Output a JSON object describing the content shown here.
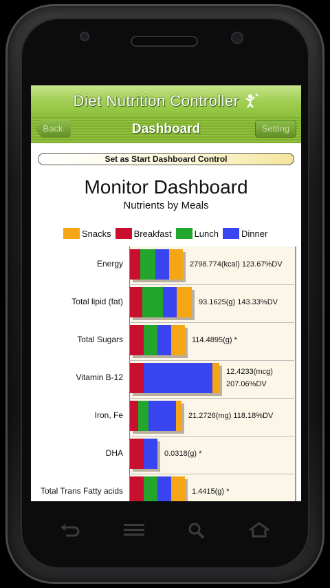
{
  "app": {
    "title": "Diet Nutrition Controller",
    "nav_title": "Dashboard",
    "back_label": "Back",
    "setting_label": "Setting",
    "start_button_label": "Set as Start Dashboard Control"
  },
  "dashboard": {
    "title": "Monitor Dashboard",
    "subtitle": "Nutrients by Meals"
  },
  "chart_data": {
    "type": "bar",
    "orientation": "horizontal",
    "stacked": true,
    "legend": [
      "Snacks",
      "Breakfast",
      "Lunch",
      "Dinner"
    ],
    "legend_position": "top",
    "colors": {
      "Snacks": "#f5a614",
      "Breakfast": "#c8102e",
      "Lunch": "#22a62b",
      "Dinner": "#3845f0"
    },
    "categories": [
      "Energy",
      "Total lipid (fat)",
      "Total Sugars",
      "Vitamin B-12",
      "Iron, Fe",
      "DHA",
      "Total Trans Fatty acids"
    ],
    "series": [
      {
        "name": "Breakfast",
        "values": [
          15,
          18,
          20,
          20,
          12,
          20,
          20
        ]
      },
      {
        "name": "Lunch",
        "values": [
          22,
          30,
          20,
          0,
          15,
          0,
          20
        ]
      },
      {
        "name": "Dinner",
        "values": [
          20,
          20,
          20,
          100,
          40,
          20,
          20
        ]
      },
      {
        "name": "Snacks",
        "values": [
          20,
          22,
          20,
          10,
          8,
          0,
          20
        ]
      }
    ],
    "value_labels": [
      [
        "2798.774(kcal) 123.67%DV"
      ],
      [
        "93.1625(g) 143.33%DV"
      ],
      [
        "114.4895(g) *"
      ],
      [
        "12.4233(mcg)",
        "207.06%DV"
      ],
      [
        "21.2726(mg) 118.18%DV"
      ],
      [
        "0.0318(g) *"
      ],
      [
        "1.4415(g) *"
      ]
    ]
  },
  "nav_keys": {
    "back": "back-key",
    "menu": "menu-key",
    "search": "search-key",
    "home": "home-key"
  }
}
